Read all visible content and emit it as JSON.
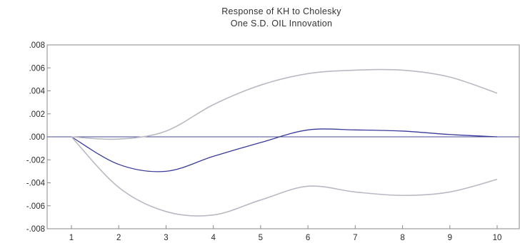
{
  "chart_data": {
    "type": "line",
    "title": "Response of KH to Cholesky",
    "subtitle": "One S.D. OIL Innovation",
    "xlabel": "",
    "ylabel": "",
    "x": [
      1,
      2,
      3,
      4,
      5,
      6,
      7,
      8,
      9,
      10
    ],
    "x_tick_labels": [
      "1",
      "2",
      "3",
      "4",
      "5",
      "6",
      "7",
      "8",
      "9",
      "10"
    ],
    "ylim": [
      -0.008,
      0.008
    ],
    "y_ticks": [
      0.008,
      0.006,
      0.004,
      0.002,
      0.0,
      -0.002,
      -0.004,
      -0.006,
      -0.008
    ],
    "y_tick_labels": [
      ".008",
      ".006",
      ".004",
      ".002",
      ".000",
      "-.002",
      "-.004",
      "-.006",
      "-.008"
    ],
    "zero_line": true,
    "grid": false,
    "series": [
      {
        "role": "response",
        "color": "#3a3a9a",
        "values": [
          0.0,
          -0.0024,
          -0.003,
          -0.0017,
          -0.0005,
          0.0006,
          0.0006,
          0.0005,
          0.0002,
          0.0
        ]
      },
      {
        "role": "upper-band",
        "color": "#b9b9c4",
        "values": [
          0.0,
          -0.0002,
          0.0005,
          0.0028,
          0.0045,
          0.0055,
          0.0058,
          0.0058,
          0.0052,
          0.0038
        ]
      },
      {
        "role": "lower-band",
        "color": "#b9b9c4",
        "values": [
          0.0,
          -0.0044,
          -0.0065,
          -0.0068,
          -0.0055,
          -0.0043,
          -0.0048,
          -0.0051,
          -0.0048,
          -0.0037
        ]
      }
    ]
  }
}
